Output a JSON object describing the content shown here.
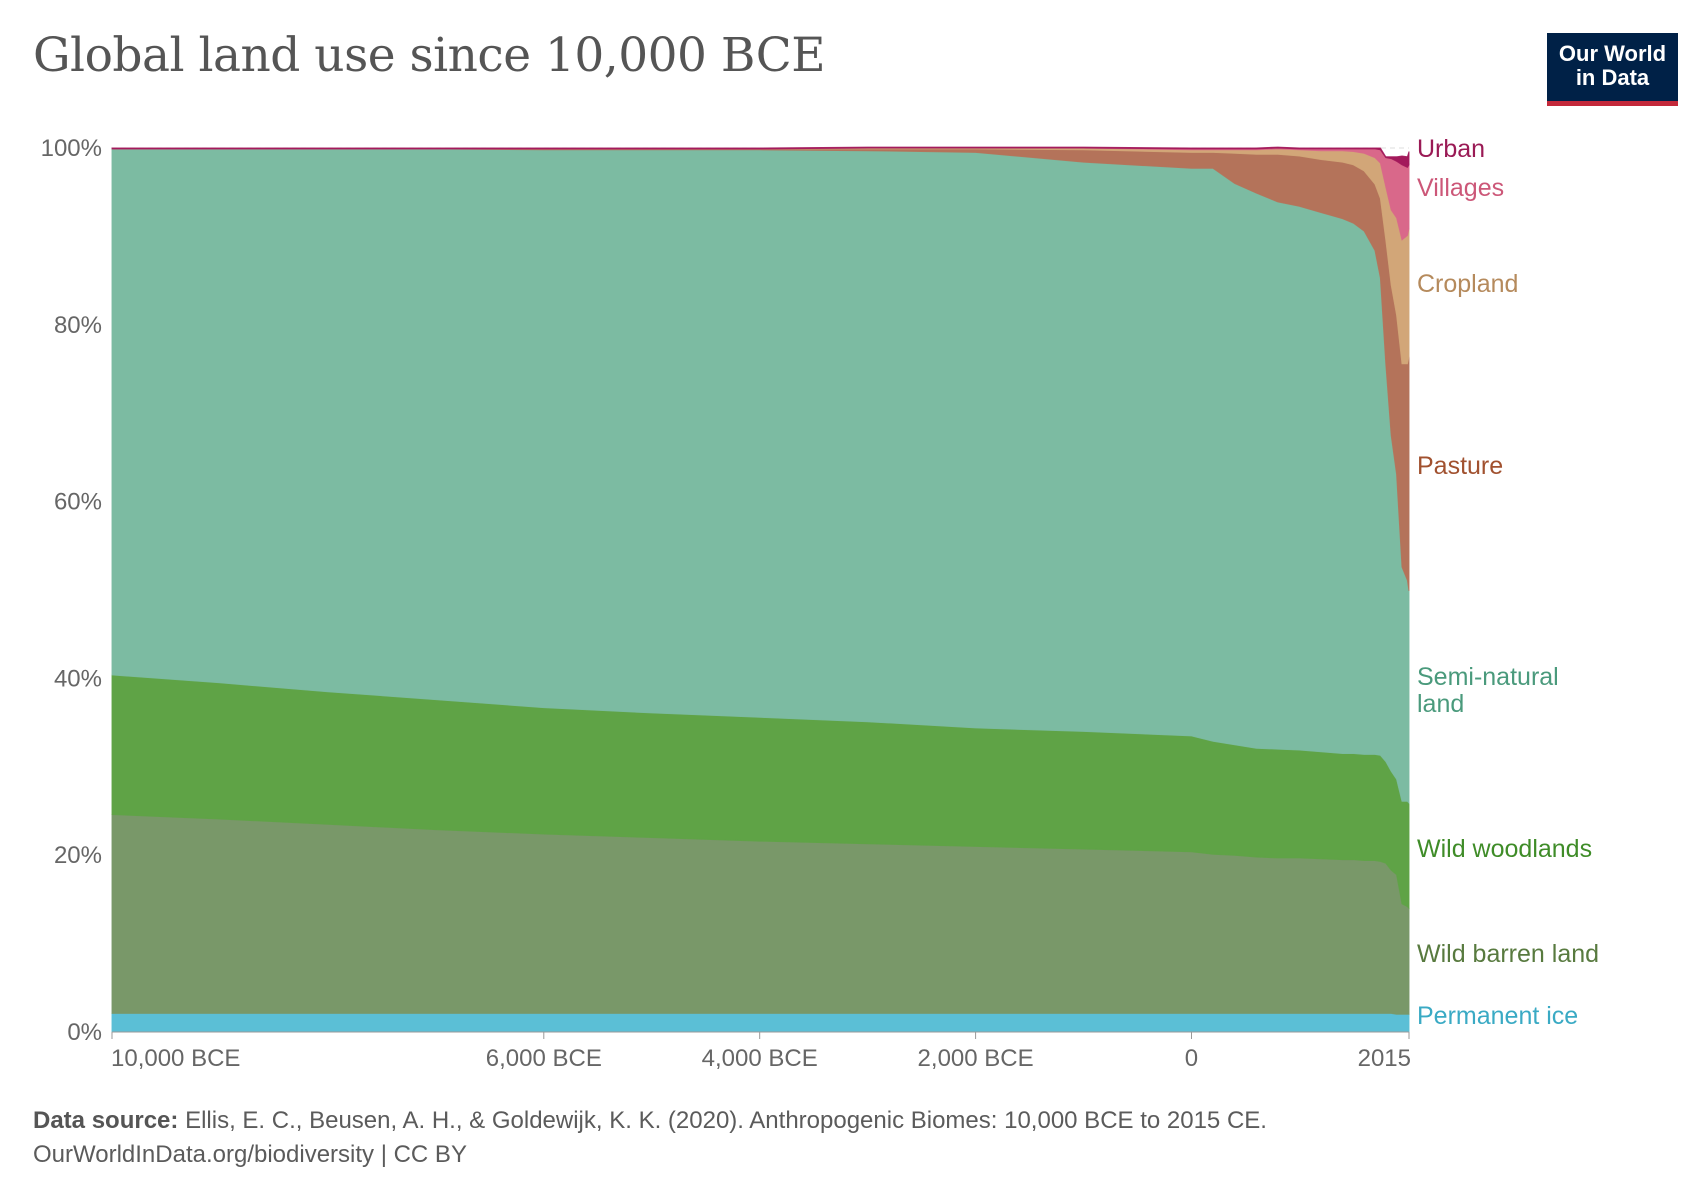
{
  "title": "Global land use since 10,000 BCE",
  "logo": {
    "line1": "Our World",
    "line2": "in Data",
    "bg": "#002147",
    "accent": "#c3293a"
  },
  "footer": {
    "source_label": "Data source:",
    "source_text": "Ellis, E. C., Beusen, A. H., & Goldewijk, K. K. (2020). Anthropogenic Biomes: 10,000 BCE to 2015 CE.",
    "url_text": "OurWorldInData.org/biodiversity | CC BY"
  },
  "chart_data": {
    "type": "area",
    "stacked": true,
    "x": [
      -10000,
      -9000,
      -8000,
      -7000,
      -6000,
      -5000,
      -4000,
      -3000,
      -2000,
      -1000,
      0,
      200,
      400,
      600,
      800,
      1000,
      1200,
      1400,
      1500,
      1600,
      1700,
      1750,
      1800,
      1850,
      1900,
      1950,
      2000,
      2015
    ],
    "x_ticks": [
      {
        "value": -10000,
        "label": "10,000 BCE"
      },
      {
        "value": -6000,
        "label": "6,000 BCE"
      },
      {
        "value": -4000,
        "label": "4,000 BCE"
      },
      {
        "value": -2000,
        "label": "2,000 BCE"
      },
      {
        "value": 0,
        "label": "0"
      },
      {
        "value": 2015,
        "label": "2015"
      }
    ],
    "y_ticks": [
      {
        "value": 0,
        "label": "0%"
      },
      {
        "value": 20,
        "label": "20%"
      },
      {
        "value": 40,
        "label": "40%"
      },
      {
        "value": 60,
        "label": "60%"
      },
      {
        "value": 80,
        "label": "80%"
      },
      {
        "value": 100,
        "label": "100%"
      }
    ],
    "ylim": [
      0,
      100
    ],
    "xlim": [
      -10000,
      2015
    ],
    "grid": "horizontal dashed",
    "legend": "right, labels at series end",
    "series": [
      {
        "name": "Permanent ice",
        "color": "#5bbfd6",
        "values": [
          2.1,
          2.1,
          2.1,
          2.1,
          2.1,
          2.1,
          2.1,
          2.1,
          2.1,
          2.1,
          2.1,
          2.1,
          2.1,
          2.1,
          2.1,
          2.1,
          2.1,
          2.1,
          2.1,
          2.1,
          2.1,
          2.1,
          2.1,
          2.1,
          2.0,
          2.0,
          2.0,
          2.0
        ]
      },
      {
        "name": "Wild barren land",
        "color": "#799869",
        "values": [
          22.5,
          22.0,
          21.4,
          20.8,
          20.3,
          19.9,
          19.5,
          19.2,
          18.9,
          18.6,
          18.3,
          18.0,
          17.9,
          17.7,
          17.6,
          17.6,
          17.5,
          17.4,
          17.4,
          17.3,
          17.3,
          17.2,
          17.0,
          16.2,
          15.8,
          12.5,
          12.2,
          12.0
        ]
      },
      {
        "name": "Wild woodlands",
        "color": "#5fa346",
        "values": [
          15.8,
          15.4,
          15.0,
          14.7,
          14.3,
          14.1,
          14.0,
          13.8,
          13.4,
          13.3,
          13.1,
          12.8,
          12.5,
          12.3,
          12.3,
          12.2,
          12.1,
          12.0,
          12.0,
          12.0,
          12.0,
          12.0,
          11.5,
          11.2,
          10.8,
          11.6,
          11.9,
          11.9
        ]
      },
      {
        "name": "Semi-natural land",
        "color": "#7cbba2",
        "values": [
          59.5,
          60.4,
          61.4,
          62.3,
          63.1,
          63.7,
          64.2,
          64.6,
          65.1,
          64.4,
          64.2,
          64.8,
          63.5,
          62.8,
          61.9,
          61.5,
          61.0,
          60.5,
          60.0,
          59.2,
          57.0,
          54.0,
          45.0,
          38.0,
          34.5,
          26.5,
          25.0,
          24.0
        ]
      },
      {
        "name": "Pasture",
        "color": "#b4735a",
        "values": [
          0.0,
          0.0,
          0.0,
          0.0,
          0.1,
          0.1,
          0.1,
          0.2,
          0.4,
          1.4,
          1.8,
          1.8,
          3.4,
          4.4,
          5.4,
          5.7,
          6.0,
          6.4,
          6.6,
          6.8,
          7.5,
          9.0,
          14.0,
          17.0,
          18.0,
          23.0,
          24.5,
          26.5
        ]
      },
      {
        "name": "Cropland",
        "color": "#d2a678",
        "values": [
          0.0,
          0.0,
          0.0,
          0.0,
          0.0,
          0.0,
          0.0,
          0.1,
          0.1,
          0.2,
          0.3,
          0.3,
          0.4,
          0.5,
          0.6,
          0.7,
          1.0,
          1.3,
          1.5,
          2.0,
          3.0,
          4.0,
          6.0,
          8.5,
          11.0,
          14.0,
          14.5,
          14.5
        ]
      },
      {
        "name": "Villages",
        "color": "#d9688a",
        "values": [
          0.0,
          0.0,
          0.0,
          0.0,
          0.0,
          0.0,
          0.0,
          0.0,
          0.0,
          0.0,
          0.1,
          0.1,
          0.1,
          0.1,
          0.1,
          0.1,
          0.2,
          0.2,
          0.3,
          0.5,
          1.0,
          1.5,
          3.3,
          5.8,
          6.4,
          8.5,
          7.7,
          7.2
        ]
      },
      {
        "name": "Urban",
        "color": "#a3195b",
        "values": [
          0.1,
          0.1,
          0.1,
          0.1,
          0.1,
          0.1,
          0.1,
          0.1,
          0.1,
          0.1,
          0.1,
          0.1,
          0.1,
          0.1,
          0.1,
          0.1,
          0.1,
          0.1,
          0.1,
          0.1,
          0.1,
          0.2,
          0.1,
          0.2,
          0.5,
          1.0,
          1.2,
          1.5
        ]
      }
    ],
    "labels": [
      {
        "text": "Urban",
        "series": "Urban",
        "color": "#9a1a55"
      },
      {
        "text": "Villages",
        "series": "Villages",
        "color": "#cc5778"
      },
      {
        "text": "Cropland",
        "series": "Cropland",
        "color": "#b58a5c"
      },
      {
        "text": "Pasture",
        "series": "Pasture",
        "color": "#a1512f"
      },
      {
        "text": "Semi-natural\nland",
        "series": "Semi-natural land",
        "color": "#4a9a7c"
      },
      {
        "text": "Wild woodlands",
        "series": "Wild woodlands",
        "color": "#3f8c28"
      },
      {
        "text": "Wild barren land",
        "series": "Wild barren land",
        "color": "#587a3f"
      },
      {
        "text": "Permanent ice",
        "series": "Permanent ice",
        "color": "#3aaac4"
      }
    ]
  }
}
